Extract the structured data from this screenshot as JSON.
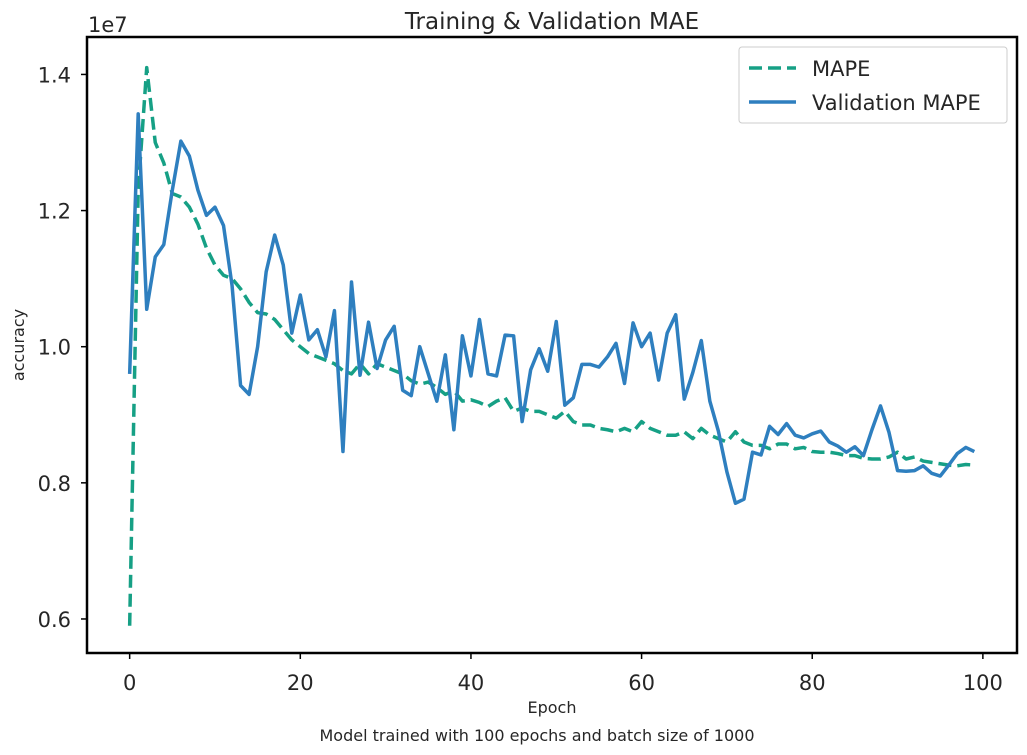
{
  "chart_data": {
    "type": "line",
    "title": "Training & Validation MAE",
    "xlabel": "Epoch",
    "ylabel": "accuracy",
    "caption": "Model trained with 100 epochs and batch size of 1000",
    "y_offset_label": "1e7",
    "y_scale": 10000000,
    "xlim": [
      -5,
      104
    ],
    "ylim": [
      0.55,
      1.455
    ],
    "xticks": [
      0,
      20,
      40,
      60,
      80,
      100
    ],
    "xtick_labels": [
      "0",
      "20",
      "40",
      "60",
      "80",
      "100"
    ],
    "yticks": [
      0.6,
      0.8,
      1.0,
      1.2,
      1.4
    ],
    "ytick_labels": [
      "0.6",
      "0.8",
      "1.0",
      "1.2",
      "1.4"
    ],
    "grid": false,
    "legend_position": "top-right",
    "series": [
      {
        "name": "MAPE",
        "style": "dashed",
        "color": "#16a085",
        "x": [
          0,
          1,
          2,
          3,
          4,
          5,
          6,
          7,
          8,
          9,
          10,
          11,
          12,
          13,
          14,
          15,
          16,
          17,
          18,
          19,
          20,
          21,
          22,
          23,
          24,
          25,
          26,
          27,
          28,
          29,
          30,
          31,
          32,
          33,
          34,
          35,
          36,
          37,
          38,
          39,
          40,
          41,
          42,
          43,
          44,
          45,
          46,
          47,
          48,
          49,
          50,
          51,
          52,
          53,
          54,
          55,
          56,
          57,
          58,
          59,
          60,
          61,
          62,
          63,
          64,
          65,
          66,
          67,
          68,
          69,
          70,
          71,
          72,
          73,
          74,
          75,
          76,
          77,
          78,
          79,
          80,
          81,
          82,
          83,
          84,
          85,
          86,
          87,
          88,
          89,
          90,
          91,
          92,
          93,
          94,
          95,
          96,
          97,
          98,
          99
        ],
        "values": [
          0.59,
          1.23,
          1.41,
          1.3,
          1.27,
          1.225,
          1.22,
          1.205,
          1.18,
          1.145,
          1.12,
          1.105,
          1.1,
          1.085,
          1.065,
          1.05,
          1.048,
          1.04,
          1.025,
          1.01,
          1.0,
          0.99,
          0.985,
          0.98,
          0.975,
          0.965,
          0.96,
          0.975,
          0.96,
          0.975,
          0.97,
          0.965,
          0.96,
          0.95,
          0.945,
          0.948,
          0.94,
          0.93,
          0.935,
          0.92,
          0.922,
          0.918,
          0.912,
          0.92,
          0.925,
          0.905,
          0.91,
          0.905,
          0.905,
          0.9,
          0.895,
          0.905,
          0.89,
          0.885,
          0.885,
          0.88,
          0.878,
          0.875,
          0.88,
          0.875,
          0.89,
          0.88,
          0.875,
          0.87,
          0.87,
          0.875,
          0.865,
          0.88,
          0.87,
          0.865,
          0.86,
          0.875,
          0.86,
          0.855,
          0.855,
          0.85,
          0.857,
          0.857,
          0.85,
          0.852,
          0.846,
          0.845,
          0.845,
          0.843,
          0.84,
          0.84,
          0.836,
          0.835,
          0.835,
          0.838,
          0.845,
          0.835,
          0.838,
          0.832,
          0.83,
          0.828,
          0.826,
          0.825,
          0.827,
          0.826
        ]
      },
      {
        "name": "Validation MAPE",
        "style": "solid",
        "color": "#2e7fbf",
        "x": [
          0,
          1,
          2,
          3,
          4,
          5,
          6,
          7,
          8,
          9,
          10,
          11,
          12,
          13,
          14,
          15,
          16,
          17,
          18,
          19,
          20,
          21,
          22,
          23,
          24,
          25,
          26,
          27,
          28,
          29,
          30,
          31,
          32,
          33,
          34,
          35,
          36,
          37,
          38,
          39,
          40,
          41,
          42,
          43,
          44,
          45,
          46,
          47,
          48,
          49,
          50,
          51,
          52,
          53,
          54,
          55,
          56,
          57,
          58,
          59,
          60,
          61,
          62,
          63,
          64,
          65,
          66,
          67,
          68,
          69,
          70,
          71,
          72,
          73,
          74,
          75,
          76,
          77,
          78,
          79,
          80,
          81,
          82,
          83,
          84,
          85,
          86,
          87,
          88,
          89,
          90,
          91,
          92,
          93,
          94,
          95,
          96,
          97,
          98,
          99
        ],
        "values": [
          0.96,
          1.342,
          1.055,
          1.132,
          1.15,
          1.23,
          1.302,
          1.28,
          1.23,
          1.193,
          1.205,
          1.178,
          1.09,
          0.943,
          0.93,
          1.0,
          1.11,
          1.164,
          1.12,
          1.02,
          1.076,
          1.01,
          1.025,
          0.985,
          1.053,
          0.846,
          1.095,
          0.958,
          1.036,
          0.968,
          1.01,
          1.03,
          0.936,
          0.928,
          1.0,
          0.96,
          0.92,
          0.988,
          0.878,
          1.016,
          0.957,
          1.04,
          0.96,
          0.957,
          1.017,
          1.016,
          0.89,
          0.966,
          0.997,
          0.964,
          1.037,
          0.914,
          0.925,
          0.974,
          0.974,
          0.97,
          0.985,
          1.005,
          0.946,
          1.035,
          1.0,
          1.02,
          0.951,
          1.02,
          1.047,
          0.923,
          0.962,
          1.009,
          0.92,
          0.876,
          0.816,
          0.77,
          0.776,
          0.845,
          0.841,
          0.883,
          0.871,
          0.887,
          0.87,
          0.866,
          0.872,
          0.876,
          0.86,
          0.854,
          0.845,
          0.853,
          0.84,
          0.878,
          0.913,
          0.874,
          0.818,
          0.817,
          0.818,
          0.825,
          0.814,
          0.81,
          0.826,
          0.843,
          0.852,
          0.846
        ]
      }
    ]
  }
}
